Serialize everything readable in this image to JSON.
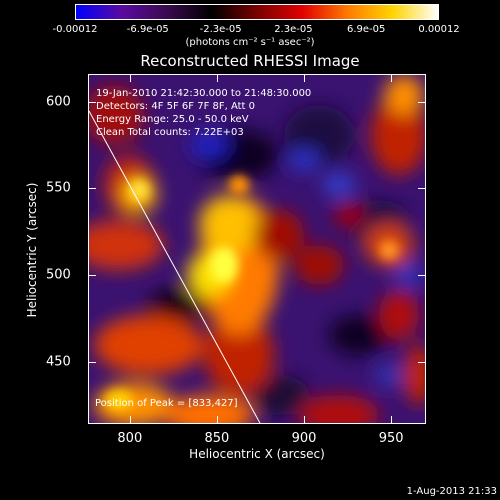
{
  "colorbar": {
    "tick_labels": [
      "-0.00012",
      "-6.9e-05",
      "-2.3e-05",
      "2.3e-05",
      "6.9e-05",
      "0.00012"
    ],
    "units": "(photons cm⁻² s⁻¹ asec⁻²)",
    "colors": [
      "#0000ff",
      "#5a0aa0",
      "#3a0a50",
      "#000000",
      "#7a0000",
      "#e00000",
      "#ff7a00",
      "#ffd400",
      "#ffffff"
    ]
  },
  "title": "Reconstructed RHESSI Image",
  "info": {
    "time": "19-Jan-2010 21:42:30.000 to 21:48:30.000",
    "detectors": "Detectors: 4F 5F 6F 7F 8F, Att 0",
    "energy": "Energy Range: 25.0 - 50.0 keV",
    "clean": "Clean    Total counts: 7.22E+03"
  },
  "position": "Position of Peak = [833,427]",
  "axes": {
    "xlabel": "Heliocentric X (arcsec)",
    "ylabel": "Heliocentric Y (arcsec)",
    "x_ticks": [
      "800",
      "850",
      "900",
      "950"
    ],
    "y_ticks": [
      "450",
      "500",
      "550",
      "600"
    ],
    "xlim": [
      776,
      970
    ],
    "ylim": [
      414,
      616
    ]
  },
  "timestamp": "1-Aug-2013 21:33"
}
